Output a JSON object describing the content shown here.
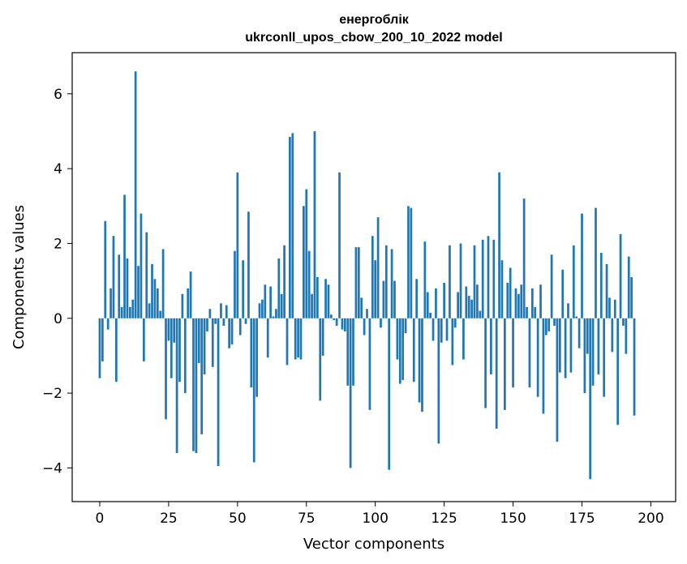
{
  "chart_data": {
    "type": "bar",
    "title_line1": "енергоблік",
    "title_line2": "ukrconll_upos_cbow_200_10_2022 model",
    "xlabel": "Vector components",
    "ylabel": "Components values",
    "xlim": [
      -10,
      209
    ],
    "ylim": [
      -4.9,
      7.1
    ],
    "xticks": [
      0,
      25,
      50,
      75,
      100,
      125,
      150,
      175,
      200
    ],
    "yticks": [
      -4,
      -2,
      0,
      2,
      4,
      6
    ],
    "ytick_labels": [
      "−4",
      "−2",
      "0",
      "2",
      "4",
      "6"
    ],
    "bar_color": "#1f77b4",
    "values": [
      -1.6,
      -1.15,
      2.6,
      -0.3,
      0.8,
      2.2,
      -1.7,
      1.7,
      0.3,
      3.3,
      1.6,
      0.3,
      0.5,
      6.6,
      1.4,
      2.8,
      -1.15,
      2.3,
      0.4,
      1.45,
      1.05,
      0.8,
      0.2,
      1.85,
      -2.7,
      -0.6,
      -1.6,
      -0.65,
      -3.6,
      -1.7,
      0.65,
      -2.0,
      0.8,
      1.25,
      -3.55,
      -3.6,
      -1.2,
      -3.1,
      -1.5,
      -0.35,
      0.25,
      -1.3,
      -0.15,
      -3.95,
      0.4,
      -0.2,
      0.35,
      -0.8,
      -0.7,
      1.8,
      3.9,
      -0.45,
      1.55,
      -0.15,
      2.85,
      -1.85,
      -3.85,
      -2.1,
      0.4,
      0.5,
      0.9,
      -1.05,
      0.85,
      0.05,
      0.25,
      1.6,
      0.65,
      1.95,
      -1.25,
      4.85,
      4.95,
      -1.1,
      -1.05,
      -1.1,
      3.0,
      3.45,
      1.8,
      0.65,
      5.0,
      1.1,
      -2.2,
      -1.0,
      1.05,
      0.9,
      0.1,
      -0.05,
      -0.2,
      3.9,
      -0.3,
      -0.35,
      -1.8,
      -4.0,
      -1.8,
      1.9,
      1.9,
      0.55,
      -0.45,
      0.25,
      -2.45,
      2.2,
      1.55,
      2.7,
      -0.25,
      1.0,
      1.95,
      -4.05,
      1.85,
      1.0,
      -1.1,
      -1.75,
      -1.65,
      -0.4,
      3.0,
      2.95,
      -1.7,
      1.05,
      -2.25,
      -2.5,
      2.05,
      0.7,
      0.15,
      -0.6,
      0.8,
      -3.35,
      -0.65,
      0.95,
      -0.6,
      1.95,
      -1.25,
      -0.25,
      0.7,
      2.0,
      -1.1,
      0.85,
      0.6,
      0.5,
      1.95,
      0.9,
      0.2,
      2.1,
      -2.4,
      2.2,
      -1.5,
      2.1,
      -2.95,
      3.9,
      1.55,
      -2.45,
      0.95,
      1.35,
      -1.85,
      0.8,
      0.65,
      0.9,
      3.2,
      0.3,
      -1.85,
      0.8,
      0.3,
      -2.1,
      0.9,
      -2.55,
      -0.45,
      -0.35,
      1.7,
      -0.2,
      -3.3,
      -1.45,
      1.3,
      -1.6,
      0.4,
      -1.45,
      1.95,
      0.05,
      -0.8,
      2.8,
      -2.0,
      -0.95,
      -4.3,
      -1.8,
      2.95,
      -1.5,
      1.75,
      -2.1,
      1.45,
      0.55,
      -0.9,
      0.5,
      -2.85,
      2.25,
      -0.2,
      -0.95,
      1.65,
      1.1,
      -2.6
    ]
  }
}
